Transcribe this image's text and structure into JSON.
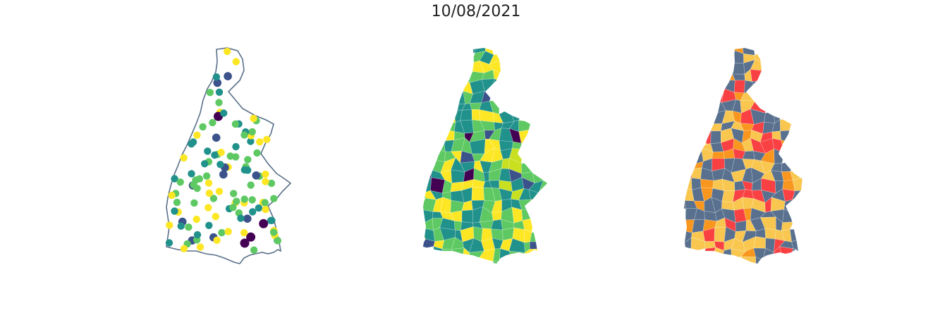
{
  "figure": {
    "date": "10/08/2021"
  },
  "colors": {
    "outline": "#5a7089",
    "viridis": [
      "#440154",
      "#3b528b",
      "#21918c",
      "#5ec962",
      "#fde725"
    ],
    "categories": [
      "#59718e",
      "#f9c74f",
      "#f8961e",
      "#f94144"
    ]
  },
  "maps": [
    {
      "name": "municipal-points-map",
      "style": "proportional-points"
    },
    {
      "name": "municipal-choropleth-map",
      "style": "continuous-fill"
    },
    {
      "name": "municipal-category-map",
      "style": "categorical-fill"
    }
  ]
}
